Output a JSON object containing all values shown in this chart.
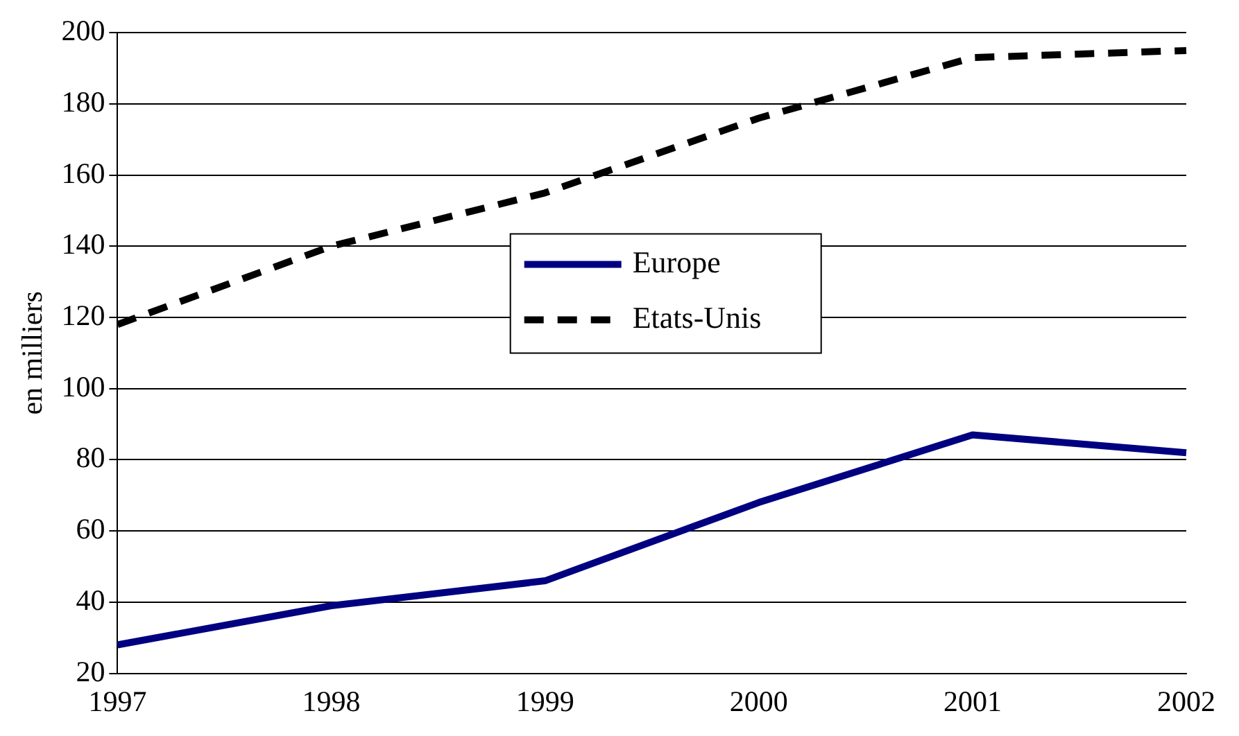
{
  "chart_data": {
    "type": "line",
    "ylabel": "en milliers",
    "categories": [
      "1997",
      "1998",
      "1999",
      "2000",
      "2001",
      "2002"
    ],
    "ylim": [
      20,
      200
    ],
    "yticks": [
      20,
      40,
      60,
      80,
      100,
      120,
      140,
      160,
      180,
      200
    ],
    "grid": "y",
    "legend": "center",
    "marker": "none",
    "series": [
      {
        "name": "Europe",
        "color": "#000080",
        "line_style": "solid",
        "values": [
          28,
          39,
          46,
          68,
          87,
          82
        ]
      },
      {
        "name": "Etats-Unis",
        "color": "#000000",
        "line_style": "dashed",
        "values": [
          118,
          140,
          155,
          176,
          193,
          195
        ]
      }
    ]
  }
}
